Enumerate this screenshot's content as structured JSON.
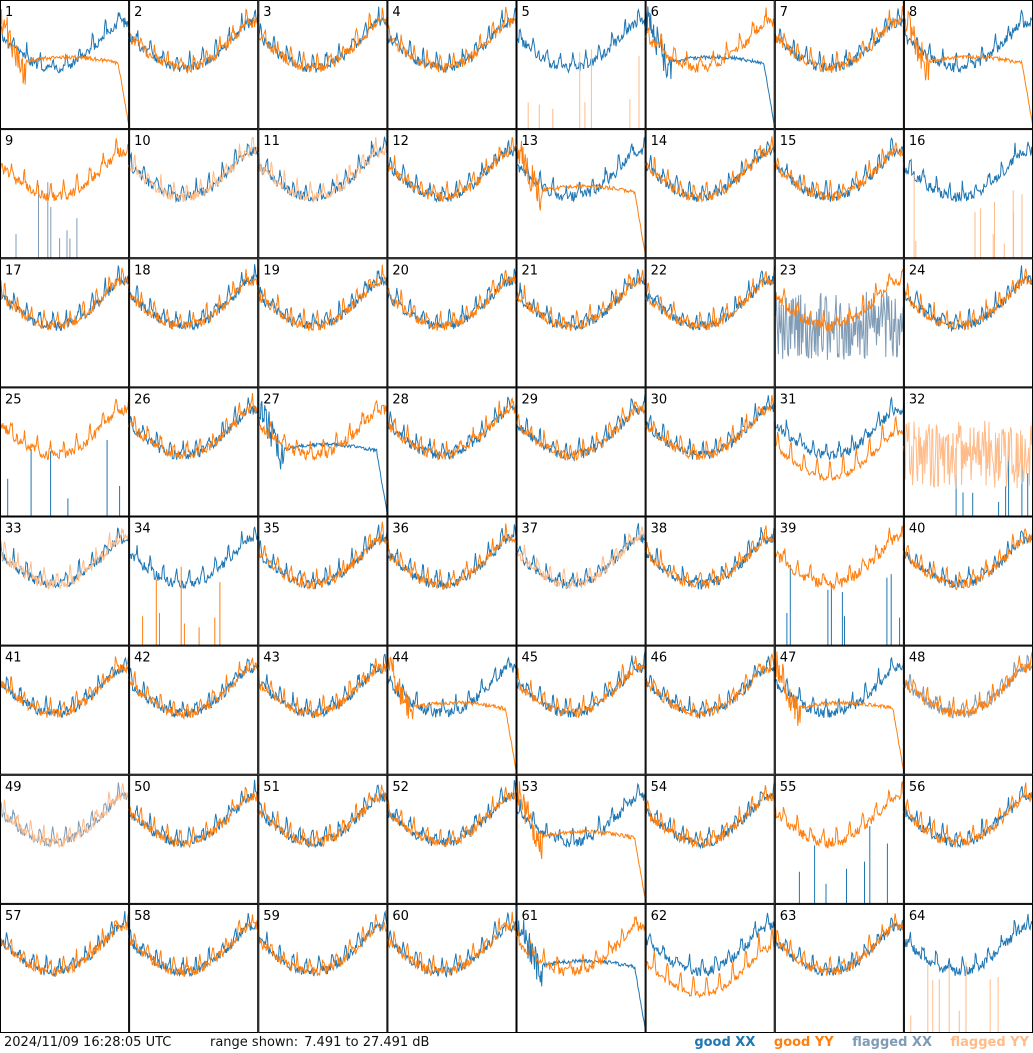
{
  "chart_data": {
    "type": "line",
    "grid": {
      "rows": 8,
      "cols": 8
    },
    "timestamp": "2024/11/09 16:28:05 UTC",
    "range_label": "range shown:",
    "range_text": "7.491 to 27.491 dB",
    "ylim": [
      7.491,
      27.491
    ],
    "legend": [
      {
        "key": "good_xx",
        "label": "good XX",
        "color": "#1f77b4"
      },
      {
        "key": "good_yy",
        "label": "good YY",
        "color": "#ff7f0e"
      },
      {
        "key": "flag_xx",
        "label": "flagged XX",
        "color": "#7f9bb5"
      },
      {
        "key": "flag_yy",
        "label": "flagged YY",
        "color": "#ffbb88"
      }
    ],
    "panels": [
      {
        "id": "1",
        "xx": "good",
        "yy": "good",
        "xx_shape": "normal",
        "yy_shape": "dropoff"
      },
      {
        "id": "2",
        "xx": "good",
        "yy": "good",
        "xx_shape": "normal",
        "yy_shape": "normal"
      },
      {
        "id": "3",
        "xx": "good",
        "yy": "good",
        "xx_shape": "normal",
        "yy_shape": "normal"
      },
      {
        "id": "4",
        "xx": "good",
        "yy": "good",
        "xx_shape": "normal",
        "yy_shape": "normal"
      },
      {
        "id": "5",
        "xx": "good",
        "yy": "flagged",
        "xx_shape": "normal",
        "yy_shape": "spikes"
      },
      {
        "id": "6",
        "xx": "good",
        "yy": "good",
        "xx_shape": "dropoff",
        "yy_shape": "normal"
      },
      {
        "id": "7",
        "xx": "good",
        "yy": "good",
        "xx_shape": "normal",
        "yy_shape": "normal"
      },
      {
        "id": "8",
        "xx": "good",
        "yy": "good",
        "xx_shape": "normal",
        "yy_shape": "dropoff"
      },
      {
        "id": "9",
        "xx": "flagged",
        "yy": "good",
        "xx_shape": "spikes",
        "yy_shape": "normal"
      },
      {
        "id": "10",
        "xx": "good",
        "yy": "flagged",
        "xx_shape": "normal",
        "yy_shape": "normal"
      },
      {
        "id": "11",
        "xx": "good",
        "yy": "flagged",
        "xx_shape": "normal",
        "yy_shape": "normal"
      },
      {
        "id": "12",
        "xx": "good",
        "yy": "good",
        "xx_shape": "normal",
        "yy_shape": "normal"
      },
      {
        "id": "13",
        "xx": "good",
        "yy": "good",
        "xx_shape": "normal",
        "yy_shape": "dropoff"
      },
      {
        "id": "14",
        "xx": "good",
        "yy": "good",
        "xx_shape": "normal",
        "yy_shape": "normal"
      },
      {
        "id": "15",
        "xx": "good",
        "yy": "good",
        "xx_shape": "normal",
        "yy_shape": "normal"
      },
      {
        "id": "16",
        "xx": "good",
        "yy": "flagged",
        "xx_shape": "normal",
        "yy_shape": "spikes"
      },
      {
        "id": "17",
        "xx": "good",
        "yy": "good",
        "xx_shape": "normal",
        "yy_shape": "normal"
      },
      {
        "id": "18",
        "xx": "good",
        "yy": "good",
        "xx_shape": "normal",
        "yy_shape": "normal"
      },
      {
        "id": "19",
        "xx": "good",
        "yy": "good",
        "xx_shape": "normal",
        "yy_shape": "normal"
      },
      {
        "id": "20",
        "xx": "good",
        "yy": "good",
        "xx_shape": "normal",
        "yy_shape": "normal"
      },
      {
        "id": "21",
        "xx": "good",
        "yy": "good",
        "xx_shape": "normal",
        "yy_shape": "normal"
      },
      {
        "id": "22",
        "xx": "good",
        "yy": "good",
        "xx_shape": "normal",
        "yy_shape": "normal"
      },
      {
        "id": "23",
        "xx": "flagged",
        "yy": "good",
        "xx_shape": "noisy",
        "yy_shape": "normal"
      },
      {
        "id": "24",
        "xx": "good",
        "yy": "good",
        "xx_shape": "normal",
        "yy_shape": "normal"
      },
      {
        "id": "25",
        "xx": "good",
        "yy": "good",
        "xx_shape": "spikes",
        "yy_shape": "normal"
      },
      {
        "id": "26",
        "xx": "good",
        "yy": "good",
        "xx_shape": "normal",
        "yy_shape": "normal"
      },
      {
        "id": "27",
        "xx": "good",
        "yy": "good",
        "xx_shape": "dropoff",
        "yy_shape": "normal"
      },
      {
        "id": "28",
        "xx": "good",
        "yy": "good",
        "xx_shape": "normal",
        "yy_shape": "normal"
      },
      {
        "id": "29",
        "xx": "good",
        "yy": "good",
        "xx_shape": "normal",
        "yy_shape": "normal"
      },
      {
        "id": "30",
        "xx": "good",
        "yy": "good",
        "xx_shape": "normal",
        "yy_shape": "normal"
      },
      {
        "id": "31",
        "xx": "good",
        "yy": "good",
        "xx_shape": "normal",
        "yy_shape": "low"
      },
      {
        "id": "32",
        "xx": "good",
        "yy": "flagged",
        "xx_shape": "spikes",
        "yy_shape": "noisy"
      },
      {
        "id": "33",
        "xx": "good",
        "yy": "flagged",
        "xx_shape": "normal",
        "yy_shape": "normal"
      },
      {
        "id": "34",
        "xx": "good",
        "yy": "good",
        "xx_shape": "normal",
        "yy_shape": "spikes"
      },
      {
        "id": "35",
        "xx": "good",
        "yy": "good",
        "xx_shape": "normal",
        "yy_shape": "normal"
      },
      {
        "id": "36",
        "xx": "good",
        "yy": "good",
        "xx_shape": "normal",
        "yy_shape": "normal"
      },
      {
        "id": "37",
        "xx": "good",
        "yy": "flagged",
        "xx_shape": "normal",
        "yy_shape": "normal"
      },
      {
        "id": "38",
        "xx": "good",
        "yy": "good",
        "xx_shape": "normal",
        "yy_shape": "normal"
      },
      {
        "id": "39",
        "xx": "good",
        "yy": "good",
        "xx_shape": "spikes",
        "yy_shape": "normal"
      },
      {
        "id": "40",
        "xx": "good",
        "yy": "good",
        "xx_shape": "normal",
        "yy_shape": "normal"
      },
      {
        "id": "41",
        "xx": "good",
        "yy": "good",
        "xx_shape": "normal",
        "yy_shape": "normal"
      },
      {
        "id": "42",
        "xx": "good",
        "yy": "good",
        "xx_shape": "normal",
        "yy_shape": "normal"
      },
      {
        "id": "43",
        "xx": "good",
        "yy": "good",
        "xx_shape": "normal",
        "yy_shape": "normal"
      },
      {
        "id": "44",
        "xx": "good",
        "yy": "good",
        "xx_shape": "normal",
        "yy_shape": "dropoff"
      },
      {
        "id": "45",
        "xx": "good",
        "yy": "good",
        "xx_shape": "normal",
        "yy_shape": "normal"
      },
      {
        "id": "46",
        "xx": "good",
        "yy": "good",
        "xx_shape": "normal",
        "yy_shape": "normal"
      },
      {
        "id": "47",
        "xx": "good",
        "yy": "good",
        "xx_shape": "normal",
        "yy_shape": "dropoff"
      },
      {
        "id": "48",
        "xx": "flagged",
        "yy": "good",
        "xx_shape": "normal",
        "yy_shape": "normal"
      },
      {
        "id": "49",
        "xx": "flagged",
        "yy": "flagged",
        "xx_shape": "normal",
        "yy_shape": "normal"
      },
      {
        "id": "50",
        "xx": "good",
        "yy": "good",
        "xx_shape": "normal",
        "yy_shape": "normal"
      },
      {
        "id": "51",
        "xx": "good",
        "yy": "good",
        "xx_shape": "normal",
        "yy_shape": "normal"
      },
      {
        "id": "52",
        "xx": "good",
        "yy": "good",
        "xx_shape": "normal",
        "yy_shape": "normal"
      },
      {
        "id": "53",
        "xx": "good",
        "yy": "good",
        "xx_shape": "normal",
        "yy_shape": "dropoff"
      },
      {
        "id": "54",
        "xx": "good",
        "yy": "good",
        "xx_shape": "normal",
        "yy_shape": "normal"
      },
      {
        "id": "55",
        "xx": "good",
        "yy": "good",
        "xx_shape": "spikes",
        "yy_shape": "normal"
      },
      {
        "id": "56",
        "xx": "good",
        "yy": "good",
        "xx_shape": "normal",
        "yy_shape": "normal"
      },
      {
        "id": "57",
        "xx": "good",
        "yy": "good",
        "xx_shape": "normal",
        "yy_shape": "normal"
      },
      {
        "id": "58",
        "xx": "good",
        "yy": "good",
        "xx_shape": "normal",
        "yy_shape": "normal"
      },
      {
        "id": "59",
        "xx": "good",
        "yy": "good",
        "xx_shape": "normal",
        "yy_shape": "normal"
      },
      {
        "id": "60",
        "xx": "good",
        "yy": "good",
        "xx_shape": "normal",
        "yy_shape": "normal"
      },
      {
        "id": "61",
        "xx": "good",
        "yy": "good",
        "xx_shape": "dropoff",
        "yy_shape": "normal"
      },
      {
        "id": "62",
        "xx": "good",
        "yy": "good",
        "xx_shape": "normal",
        "yy_shape": "low"
      },
      {
        "id": "63",
        "xx": "good",
        "yy": "good",
        "xx_shape": "normal",
        "yy_shape": "normal"
      },
      {
        "id": "64",
        "xx": "good",
        "yy": "flagged",
        "xx_shape": "normal",
        "yy_shape": "spikes"
      }
    ]
  }
}
